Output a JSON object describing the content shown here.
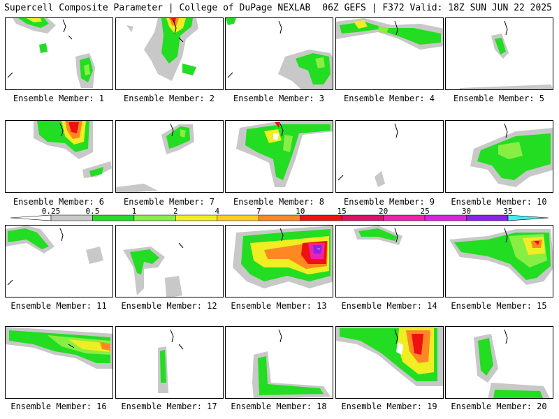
{
  "header": {
    "title_left": "Supercell Composite Parameter | College of DuPage NEXLAB",
    "title_right": "06Z GEFS | F372 Valid: 18Z SUN JUN 22 2025"
  },
  "panels": [
    {
      "label": "Ensemble Member: 1"
    },
    {
      "label": "Ensemble Member: 2"
    },
    {
      "label": "Ensemble Member: 3"
    },
    {
      "label": "Ensemble Member: 4"
    },
    {
      "label": "Ensemble Member: 5"
    },
    {
      "label": "Ensemble Member: 6"
    },
    {
      "label": "Ensemble Member: 7"
    },
    {
      "label": "Ensemble Member: 8"
    },
    {
      "label": "Ensemble Member: 9"
    },
    {
      "label": "Ensemble Member: 10"
    },
    {
      "label": "Ensemble Member: 11"
    },
    {
      "label": "Ensemble Member: 12"
    },
    {
      "label": "Ensemble Member: 13"
    },
    {
      "label": "Ensemble Member: 14"
    },
    {
      "label": "Ensemble Member: 15"
    },
    {
      "label": "Ensemble Member: 16"
    },
    {
      "label": "Ensemble Member: 17"
    },
    {
      "label": "Ensemble Member: 18"
    },
    {
      "label": "Ensemble Member: 19"
    },
    {
      "label": "Ensemble Member: 20"
    }
  ],
  "colorbar": {
    "ticks": [
      "0.25",
      "0.5",
      "1",
      "2",
      "4",
      "7",
      "10",
      "15",
      "20",
      "25",
      "30",
      "35"
    ],
    "colors": [
      "#c8c8c8",
      "#22dd22",
      "#88ee44",
      "#eeee22",
      "#ffcc22",
      "#ff8822",
      "#ee1111",
      "#dd1166",
      "#ee22aa",
      "#dd22dd",
      "#8822ee",
      "#aa66dd",
      "#44eeee"
    ]
  }
}
